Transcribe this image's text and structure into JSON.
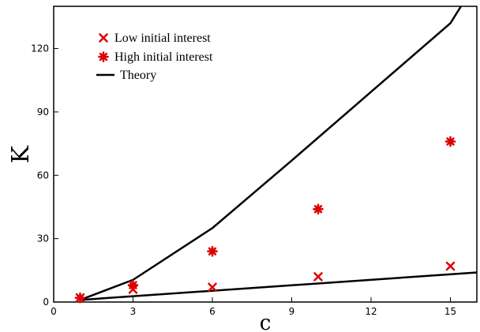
{
  "chart_data": {
    "type": "scatter",
    "xlabel": "c",
    "ylabel": "K",
    "xlim": [
      0,
      16
    ],
    "ylim": [
      0,
      140
    ],
    "xticks": [
      0,
      3,
      6,
      9,
      12,
      15
    ],
    "yticks": [
      0,
      30,
      60,
      90,
      120
    ],
    "grid": false,
    "legend_position": "top-left",
    "series": [
      {
        "name": "Low initial interest",
        "marker": "x",
        "color": "#dd0000",
        "points": [
          [
            1,
            2
          ],
          [
            3,
            6
          ],
          [
            6,
            7
          ],
          [
            10,
            12
          ],
          [
            15,
            17
          ]
        ]
      },
      {
        "name": "High initial interest",
        "marker": "asterisk",
        "color": "#dd0000",
        "points": [
          [
            1,
            2
          ],
          [
            3,
            8
          ],
          [
            6,
            24
          ],
          [
            10,
            44
          ],
          [
            15,
            76
          ]
        ]
      }
    ],
    "theory": {
      "name": "Theory",
      "color": "#000000",
      "curves": [
        {
          "x": [
            1,
            3,
            6,
            9,
            12,
            15,
            15.4
          ],
          "y": [
            1,
            10.5,
            35,
            67,
            99.5,
            132,
            140
          ]
        },
        {
          "x": [
            1,
            16
          ],
          "y": [
            1,
            14
          ]
        }
      ]
    }
  }
}
